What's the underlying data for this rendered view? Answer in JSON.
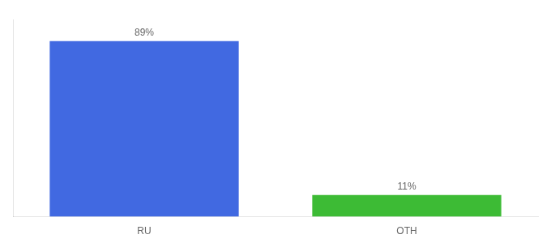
{
  "chart_data": {
    "type": "bar",
    "categories": [
      "RU",
      "OTH"
    ],
    "values": [
      89,
      11
    ],
    "colors": [
      "#4169e1",
      "#3dbb35"
    ],
    "value_labels": [
      "89%",
      "11%"
    ],
    "data_labels": true,
    "ylim": [
      0,
      100
    ],
    "grid": false,
    "tick_labels": "x"
  }
}
